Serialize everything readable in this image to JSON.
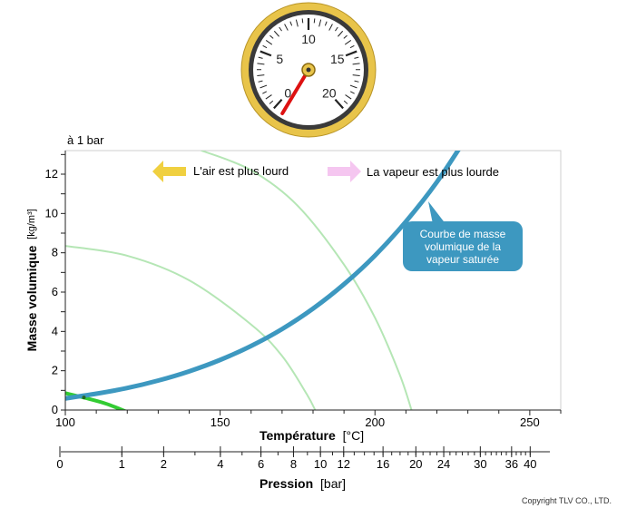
{
  "gauge": {
    "ticks": [
      "0",
      "5",
      "10",
      "15",
      "20"
    ],
    "value": 0
  },
  "chart_data": {
    "type": "line",
    "pressure_note": "à 1 bar",
    "xlabel": "Température",
    "xunit": "[°C]",
    "ylabel": "Masse volumique",
    "yunit": "[kg/m³]",
    "xlim": [
      100,
      260
    ],
    "ylim": [
      0,
      13.2
    ],
    "x_ticks": [
      "100",
      "150",
      "200",
      "250"
    ],
    "y_ticks": [
      "0",
      "2",
      "4",
      "6",
      "8",
      "10",
      "12"
    ],
    "legend": {
      "air_heavier": "L'air est plus lourd",
      "vapor_heavier": "La vapeur est plus lourde"
    },
    "callout": "Courbe de masse volumique de la vapeur saturée",
    "series": [
      {
        "name": "Courbe de masse volumique de la vapeur saturée",
        "color": "#3d98c0",
        "x": [
          100,
          110,
          120,
          130,
          140,
          150,
          160,
          170,
          180,
          190,
          200,
          210,
          220,
          230
        ],
        "y": [
          0.59,
          0.83,
          1.12,
          1.5,
          1.97,
          2.55,
          3.26,
          4.12,
          5.16,
          6.4,
          7.86,
          9.59,
          11.6,
          13.98
        ]
      },
      {
        "color": "#33cc33",
        "x": [
          100,
          106,
          113,
          120
        ],
        "y": [
          0.86,
          0.63,
          0.33,
          -0.1
        ]
      },
      {
        "color": "#b5e6b5",
        "x": [
          100,
          120,
          140,
          160,
          170,
          178,
          181
        ],
        "y": [
          8.35,
          7.85,
          6.6,
          4.35,
          2.75,
          0.8,
          -0.1
        ]
      },
      {
        "color": "#b5e6b5",
        "x": [
          144,
          160,
          175,
          190,
          200,
          208,
          212
        ],
        "y": [
          13.2,
          12.2,
          10.4,
          7.4,
          4.7,
          1.8,
          -0.1
        ]
      }
    ],
    "pressure_axis": {
      "label": "Pression",
      "unit": "[bar]",
      "major_ticks": [
        "0",
        "1",
        "2",
        "4",
        "6",
        "8",
        "10",
        "12",
        "16",
        "20",
        "24",
        "30",
        "36",
        "40"
      ]
    }
  },
  "copyright": "Copyright TLV CO., LTD."
}
